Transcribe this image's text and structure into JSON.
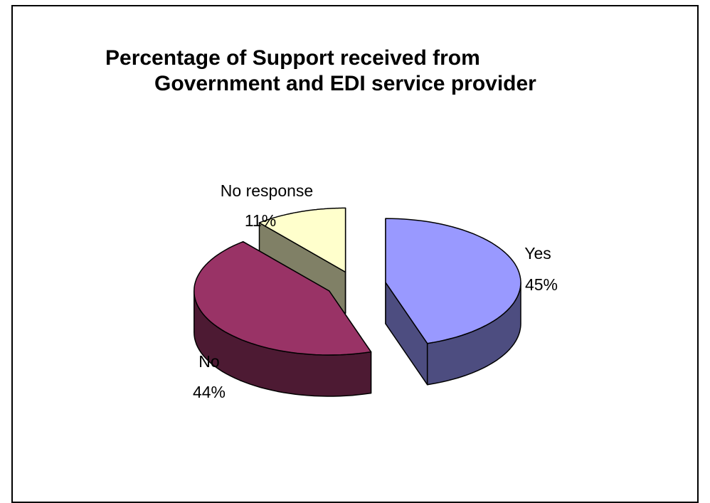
{
  "chart_data": {
    "type": "pie",
    "title_lines": [
      "Percentage of Support received from",
      "Government and EDI service provider"
    ],
    "slices": [
      {
        "name": "Yes",
        "value": 45,
        "label": "45%",
        "color": "#9999ff",
        "side_color": "#4d4d80"
      },
      {
        "name": "No",
        "value": 44,
        "label": "44%",
        "color": "#993366",
        "side_color": "#4d1a33"
      },
      {
        "name": "No response",
        "value": 11,
        "label": "11%",
        "color": "#ffffcc",
        "side_color": "#808066"
      }
    ],
    "exploded": true,
    "three_d": true,
    "legend": "none"
  }
}
